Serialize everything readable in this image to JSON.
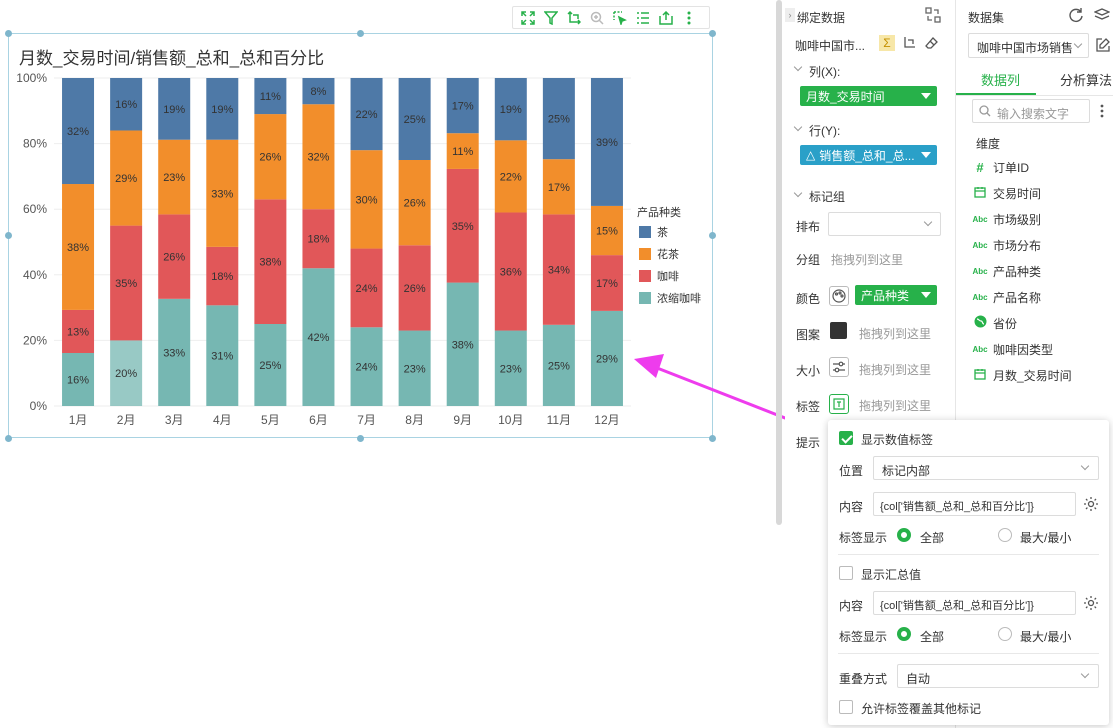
{
  "chart": {
    "title": "月数_交易时间/销售额_总和_总和百分比",
    "legend_title": "产品种类",
    "toolbar_icons": [
      "fullscreen-icon",
      "filter-icon",
      "drill-icon",
      "zoom-icon",
      "select-icon",
      "list-icon",
      "export-icon",
      "more-icon"
    ]
  },
  "chart_data": {
    "type": "bar",
    "stacked": true,
    "percent": true,
    "categories": [
      "1月",
      "2月",
      "3月",
      "4月",
      "5月",
      "6月",
      "7月",
      "8月",
      "9月",
      "10月",
      "11月",
      "12月"
    ],
    "y_ticks": [
      "0%",
      "20%",
      "40%",
      "60%",
      "80%",
      "100%"
    ],
    "ylim": [
      0,
      100
    ],
    "legend_position": "right",
    "series": [
      {
        "name": "浓缩咖啡",
        "color": "#76b7b2",
        "values": [
          16,
          20,
          33,
          31,
          25,
          42,
          24,
          23,
          38,
          23,
          25,
          29
        ]
      },
      {
        "name": "咖啡",
        "color": "#e15759",
        "values": [
          13,
          35,
          26,
          18,
          38,
          18,
          24,
          26,
          35,
          36,
          34,
          17
        ]
      },
      {
        "name": "花茶",
        "color": "#f28e2b",
        "values": [
          38,
          29,
          23,
          33,
          26,
          32,
          30,
          26,
          11,
          22,
          17,
          15
        ]
      },
      {
        "name": "茶",
        "color": "#4e79a7",
        "values": [
          32,
          16,
          19,
          19,
          11,
          8,
          22,
          25,
          17,
          19,
          25,
          39
        ]
      }
    ],
    "legend_order": [
      "茶",
      "花茶",
      "咖啡",
      "浓缩咖啡"
    ],
    "highlighted_index": 1
  },
  "bind_panel": {
    "title": "绑定数据",
    "dataset_short": "咖啡中国市...",
    "col_label": "列(X):",
    "col_pill": "月数_交易时间",
    "row_label": "行(Y):",
    "row_pill": "销售额_总和_总...",
    "marks_label": "标记组",
    "layout_label": "排布",
    "group_label": "分组",
    "group_placeholder": "拖拽列到这里",
    "color_label": "颜色",
    "color_pill": "产品种类",
    "shape_label": "图案",
    "shape_placeholder": "拖拽列到这里",
    "size_label": "大小",
    "size_placeholder": "拖拽列到这里",
    "label_label": "标签",
    "label_placeholder": "拖拽列到这里",
    "tooltip_label": "提示"
  },
  "dataset_panel": {
    "title": "数据集",
    "dataset_select": "咖啡中国市场销售",
    "tab_columns": "数据列",
    "tab_algorithms": "分析算法",
    "search_placeholder": "输入搜索文字",
    "dimension_header": "维度",
    "fields": [
      {
        "icon": "#",
        "name": "订单ID",
        "type": "number"
      },
      {
        "icon": "date",
        "name": "交易时间",
        "type": "date"
      },
      {
        "icon": "Abc",
        "name": "市场级别",
        "type": "text"
      },
      {
        "icon": "Abc",
        "name": "市场分布",
        "type": "text"
      },
      {
        "icon": "Abc",
        "name": "产品种类",
        "type": "text"
      },
      {
        "icon": "Abc",
        "name": "产品名称",
        "type": "text"
      },
      {
        "icon": "geo",
        "name": "省份",
        "type": "geo"
      },
      {
        "icon": "Abc",
        "name": "咖啡因类型",
        "type": "text"
      },
      {
        "icon": "date",
        "name": "月数_交易时间",
        "type": "date"
      }
    ]
  },
  "label_popup": {
    "show_value_label": "显示数值标签",
    "position_label": "位置",
    "position_value": "标记内部",
    "content_label": "内容",
    "content_value": "{col['销售额_总和_总和百分比']}",
    "label_display": "标签显示",
    "opt_all": "全部",
    "opt_maxmin": "最大/最小",
    "show_total": "显示汇总值",
    "content_value2": "{col['销售额_总和_总和百分比']}",
    "overlap_label": "重叠方式",
    "overlap_value": "自动",
    "allow_overlap": "允许标签覆盖其他标记"
  },
  "colors": {
    "accent_green": "#27b14a",
    "accent_blue": "#2aa0c8",
    "arrow": "#ee3ced"
  }
}
